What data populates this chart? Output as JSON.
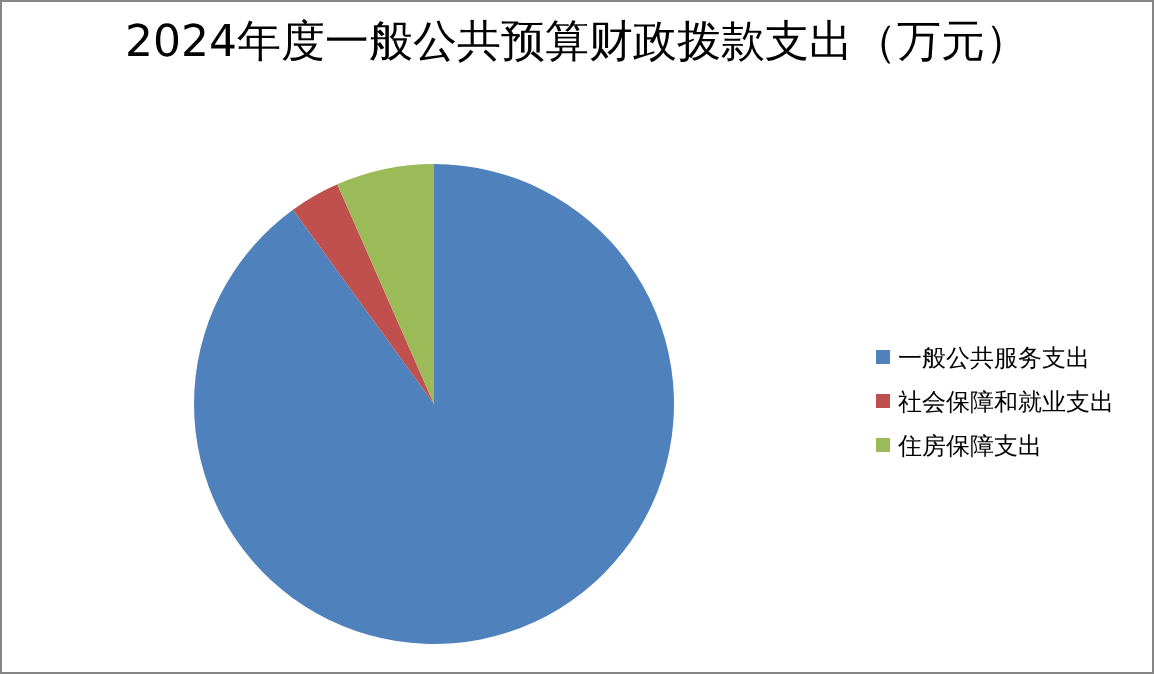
{
  "chart_data": {
    "type": "pie",
    "title": "2024年度一般公共预算财政拨款支出（万元）",
    "categories": [
      "一般公共服务支出",
      "社会保障和就业支出",
      "住房保障支出"
    ],
    "values": [
      90.0,
      3.4,
      6.6
    ],
    "colors": [
      "#4f81bd",
      "#c0504d",
      "#9bbb59"
    ],
    "legend": "right"
  }
}
